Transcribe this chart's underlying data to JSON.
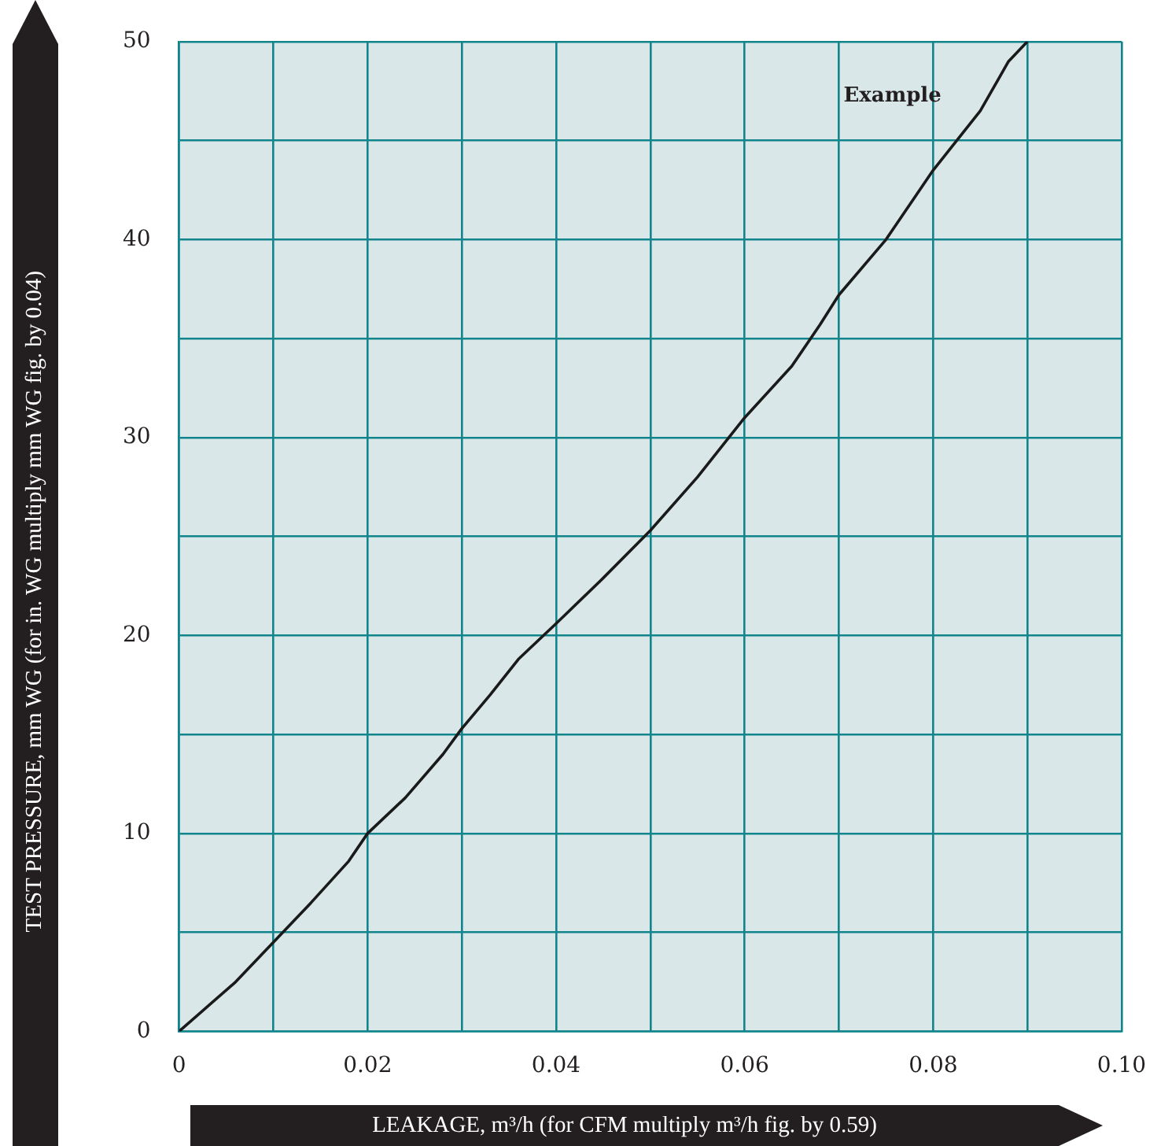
{
  "chart_data": {
    "type": "line",
    "xlabel": "LEAKAGE, m³/h (for CFM multiply m³/h fig. by 0.59)",
    "ylabel": "TEST PRESSURE, mm WG (for in. WG multiply mm WG fig. by 0.04)",
    "x": [
      0,
      0.006,
      0.01,
      0.014,
      0.018,
      0.02,
      0.024,
      0.028,
      0.03,
      0.033,
      0.036,
      0.04,
      0.045,
      0.05,
      0.055,
      0.06,
      0.065,
      0.068,
      0.07,
      0.075,
      0.08,
      0.085,
      0.088,
      0.09
    ],
    "series": [
      {
        "color": "#1a1a1a",
        "values": [
          0,
          2.5,
          4.5,
          6.5,
          8.6,
          10,
          11.8,
          14,
          15.3,
          17,
          18.8,
          20.6,
          22.9,
          25.3,
          28,
          31,
          33.6,
          35.7,
          37.2,
          40,
          43.5,
          46.5,
          49,
          50
        ]
      }
    ],
    "xlim": [
      0,
      0.1
    ],
    "xticks": [
      0,
      {
        "value": 0.01,
        "label": null
      },
      0.02,
      {
        "value": 0.03,
        "label": null
      },
      0.04,
      {
        "value": 0.05,
        "label": null
      },
      0.06,
      {
        "value": 0.07,
        "label": null
      },
      0.08,
      {
        "value": 0.09,
        "label": null
      },
      {
        "value": 0.1,
        "label": "0.10"
      }
    ],
    "ylim": [
      0,
      50
    ],
    "yticks": [
      0,
      {
        "value": 5,
        "label": null
      },
      10,
      {
        "value": 15,
        "label": null
      },
      20,
      {
        "value": 25,
        "label": null
      },
      30,
      {
        "value": 35,
        "label": null
      },
      40,
      {
        "value": 45,
        "label": null
      },
      50
    ],
    "grid": true,
    "legend": false,
    "marker": "none",
    "line_style": "solid",
    "annotations": [
      "Example"
    ]
  }
}
